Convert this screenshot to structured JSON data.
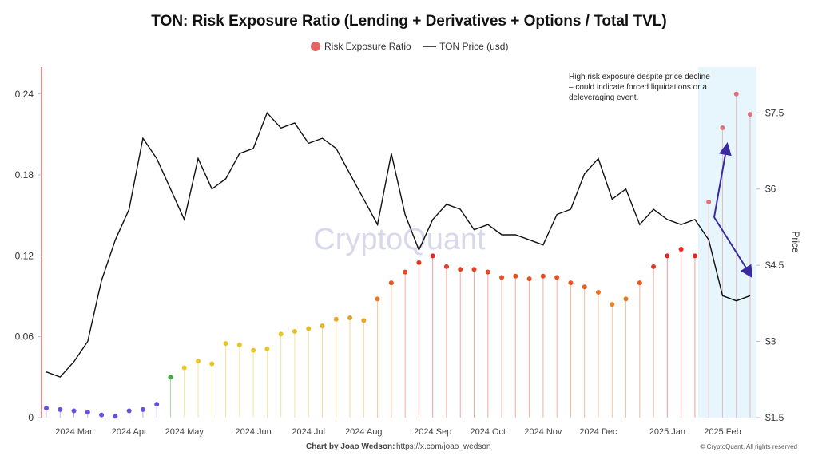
{
  "chart_data": {
    "type": "dual-line-lollipop",
    "title": "TON: Risk Exposure Ratio (Lending + Derivatives + Options / Total TVL)",
    "categories": [
      null,
      null,
      "2024 Mar",
      null,
      null,
      null,
      "2024 Apr",
      null,
      null,
      null,
      "2024 May",
      null,
      null,
      null,
      null,
      "2024 Jun",
      null,
      null,
      null,
      "2024 Jul",
      null,
      null,
      null,
      "2024 Aug",
      null,
      null,
      null,
      null,
      "2024 Sep",
      null,
      null,
      null,
      "2024 Oct",
      null,
      null,
      null,
      "2024 Nov",
      null,
      null,
      null,
      "2024 Dec",
      null,
      null,
      null,
      null,
      "2025 Jan",
      null,
      null,
      null,
      "2025 Feb",
      null,
      null
    ],
    "series": [
      {
        "name": "Risk Exposure Ratio",
        "color": "#e06666",
        "values": [
          0.007,
          0.006,
          0.005,
          0.004,
          0.002,
          0.001,
          0.005,
          0.006,
          0.01,
          0.03,
          0.037,
          0.042,
          0.04,
          0.055,
          0.054,
          0.05,
          0.051,
          0.062,
          0.064,
          0.066,
          0.068,
          0.073,
          0.074,
          0.072,
          0.088,
          0.1,
          0.108,
          0.115,
          0.12,
          0.112,
          0.11,
          0.11,
          0.108,
          0.104,
          0.105,
          0.103,
          0.105,
          0.104,
          0.1,
          0.097,
          0.093,
          0.084,
          0.088,
          0.1,
          0.112,
          0.12,
          0.125,
          0.12,
          0.16,
          0.215,
          0.24,
          0.225
        ]
      },
      {
        "name": "TON Price (usd)",
        "color": "#111111",
        "axis": "y2",
        "values": [
          2.4,
          2.3,
          2.6,
          3.0,
          4.2,
          5.0,
          5.6,
          7.0,
          6.6,
          6.0,
          5.4,
          6.6,
          6.0,
          6.2,
          6.7,
          6.8,
          7.5,
          7.2,
          7.3,
          6.9,
          7.0,
          6.8,
          6.3,
          5.8,
          5.3,
          6.7,
          5.5,
          4.8,
          5.4,
          5.7,
          5.6,
          5.2,
          5.3,
          5.1,
          5.1,
          5.0,
          4.9,
          5.5,
          5.6,
          6.3,
          6.6,
          5.8,
          6.0,
          5.3,
          5.6,
          5.4,
          5.3,
          5.4,
          5.0,
          3.9,
          3.8,
          3.9
        ]
      }
    ],
    "ylim": [
      0,
      0.26
    ],
    "yticks": [
      0,
      0.06,
      0.12,
      0.18,
      0.24
    ],
    "y2lim": [
      1.5,
      8.4
    ],
    "y2ticks": [
      {
        "value": 1.5,
        "label": "$1.5"
      },
      {
        "value": 3,
        "label": "$3"
      },
      {
        "value": 4.5,
        "label": "$4.5"
      },
      {
        "value": 6,
        "label": "$6"
      },
      {
        "value": 7.5,
        "label": "$7.5"
      }
    ],
    "y2_label": "Price",
    "annotation": "High risk exposure despite price decline – could indicate forced liquidations or a deleveraging event.",
    "watermark": "CryptoQuant",
    "credit": "Chart by Joao Wedson:",
    "credit_link": "https://x.com/joao_wedson",
    "copyright": "© CryptoQuant. All rights reserved"
  }
}
